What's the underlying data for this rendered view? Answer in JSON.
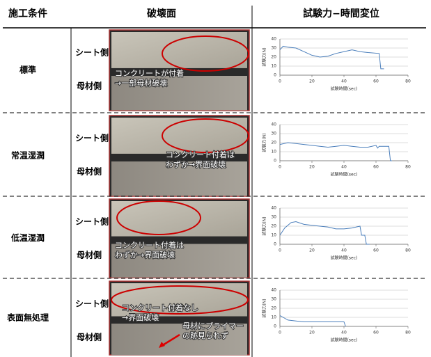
{
  "table": {
    "header": {
      "condition": "施工条件",
      "fracture": "破壊面",
      "chart": "試験力−時間変位"
    },
    "rows": [
      {
        "condition": "標準",
        "sheet_side": "シート側",
        "base_side": "母材側",
        "notes": [
          "コンクリートが付着",
          "→一部母材破壊"
        ]
      },
      {
        "condition": "常温湿潤",
        "sheet_side": "シート側",
        "base_side": "母材側",
        "notes": [
          "コンクリート付着は",
          "わずか→界面破壊"
        ]
      },
      {
        "condition": "低温湿潤",
        "sheet_side": "シート側",
        "base_side": "母材側",
        "notes": [
          "コンクリート付着は",
          "わずか→界面破壊"
        ]
      },
      {
        "condition": "表面無処理",
        "sheet_side": "シート側",
        "base_side": "母材側",
        "notes": [
          "コンクリート付着なし",
          "→界面破壊"
        ],
        "notes2": [
          "母材にプライマー",
          "の跡見られず"
        ]
      }
    ]
  },
  "chart_data": [
    {
      "type": "line",
      "ylabel": "試験力(N)",
      "xlabel": "試験時間(sec)",
      "xlim": [
        0,
        80
      ],
      "ylim": [
        0,
        40
      ],
      "xticks": [
        0,
        20,
        40,
        60,
        80
      ],
      "yticks": [
        0,
        10,
        20,
        30,
        40
      ],
      "color": "#4a7ebb",
      "x": [
        0,
        2,
        5,
        10,
        15,
        20,
        25,
        30,
        35,
        40,
        45,
        50,
        55,
        62,
        63,
        65
      ],
      "values": [
        28,
        32,
        31,
        30,
        26,
        22,
        20,
        21,
        24,
        26,
        28,
        26,
        25,
        24,
        7,
        7
      ]
    },
    {
      "type": "line",
      "ylabel": "試験力(N)",
      "xlabel": "試験時間(sec)",
      "xlim": [
        0,
        80
      ],
      "ylim": [
        0,
        40
      ],
      "xticks": [
        0,
        20,
        40,
        60,
        80
      ],
      "yticks": [
        0,
        10,
        20,
        30,
        40
      ],
      "color": "#4a7ebb",
      "x": [
        0,
        5,
        10,
        15,
        20,
        25,
        30,
        35,
        40,
        45,
        50,
        55,
        60,
        61,
        62,
        68,
        69,
        70
      ],
      "values": [
        18,
        20,
        19,
        18,
        17,
        16,
        15,
        16,
        17,
        16,
        15,
        15,
        17,
        14,
        16,
        16,
        0,
        0
      ]
    },
    {
      "type": "line",
      "ylabel": "試験力(N)",
      "xlabel": "試験時間(sec)",
      "xlim": [
        0,
        80
      ],
      "ylim": [
        0,
        40
      ],
      "xticks": [
        0,
        20,
        40,
        60,
        80
      ],
      "yticks": [
        0,
        10,
        20,
        30,
        40
      ],
      "color": "#4a7ebb",
      "x": [
        0,
        3,
        7,
        10,
        15,
        20,
        25,
        30,
        35,
        40,
        45,
        50,
        51,
        53,
        54,
        56
      ],
      "values": [
        10,
        18,
        24,
        25,
        22,
        21,
        20,
        19,
        17,
        17,
        18,
        20,
        10,
        10,
        0,
        0
      ]
    },
    {
      "type": "line",
      "ylabel": "試験力(N)",
      "xlabel": "試験時間(sec)",
      "xlim": [
        0,
        80
      ],
      "ylim": [
        0,
        40
      ],
      "xticks": [
        0,
        20,
        40,
        60,
        80
      ],
      "yticks": [
        0,
        10,
        20,
        30,
        40
      ],
      "color": "#4a7ebb",
      "x": [
        0,
        2,
        5,
        10,
        15,
        20,
        30,
        40,
        41
      ],
      "values": [
        12,
        10,
        7,
        6,
        5,
        5,
        5,
        5,
        0
      ]
    }
  ]
}
